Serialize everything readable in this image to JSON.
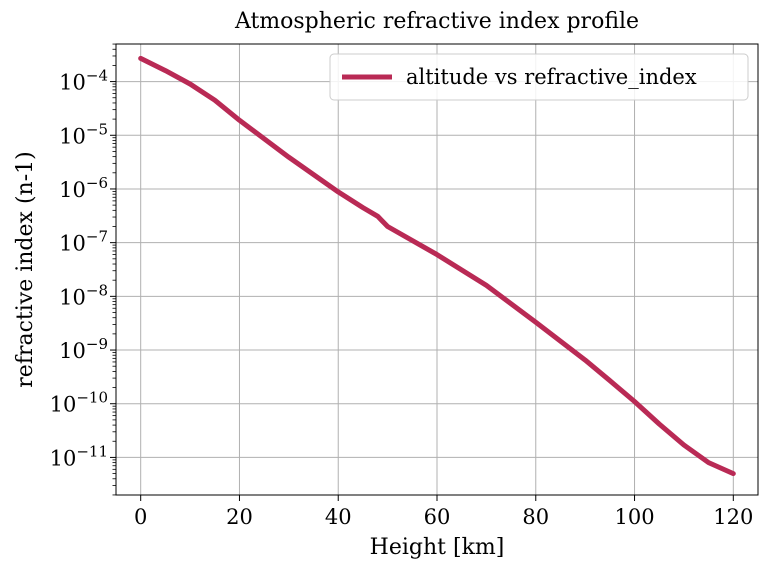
{
  "chart_data": {
    "type": "line",
    "title": "Atmospheric refractive index profile",
    "xlabel": "Height [km]",
    "ylabel": "refractive index (n-1)",
    "xlim": [
      -5,
      125
    ],
    "ylim_log10": [
      -11.7,
      -3.3
    ],
    "y_scale": "log",
    "grid": true,
    "legend_position": "top-right",
    "x_ticks": [
      0,
      20,
      40,
      60,
      80,
      100,
      120
    ],
    "x_tick_labels": [
      "0",
      "20",
      "40",
      "60",
      "80",
      "100",
      "120"
    ],
    "y_ticks_log10": [
      -4,
      -5,
      -6,
      -7,
      -8,
      -9,
      -10,
      -11
    ],
    "y_tick_base": "10",
    "y_tick_exponents": [
      "−4",
      "−5",
      "−6",
      "−7",
      "−8",
      "−9",
      "−10",
      "−11"
    ],
    "series": [
      {
        "name": "altitude vs refractive_index",
        "color": "#b92a55",
        "x": [
          0,
          5,
          10,
          15,
          20,
          30,
          40,
          45,
          48,
          50,
          60,
          70,
          80,
          90,
          95,
          100,
          105,
          110,
          115,
          120
        ],
        "y": [
          0.00027,
          0.00016,
          9e-05,
          4.5e-05,
          1.9e-05,
          3.9e-06,
          8.8e-07,
          4.5e-07,
          3.1e-07,
          2e-07,
          6e-08,
          1.6e-08,
          3.3e-09,
          6.5e-10,
          2.7e-10,
          1.1e-10,
          4.2e-11,
          1.7e-11,
          8e-12,
          5e-12
        ]
      }
    ]
  }
}
